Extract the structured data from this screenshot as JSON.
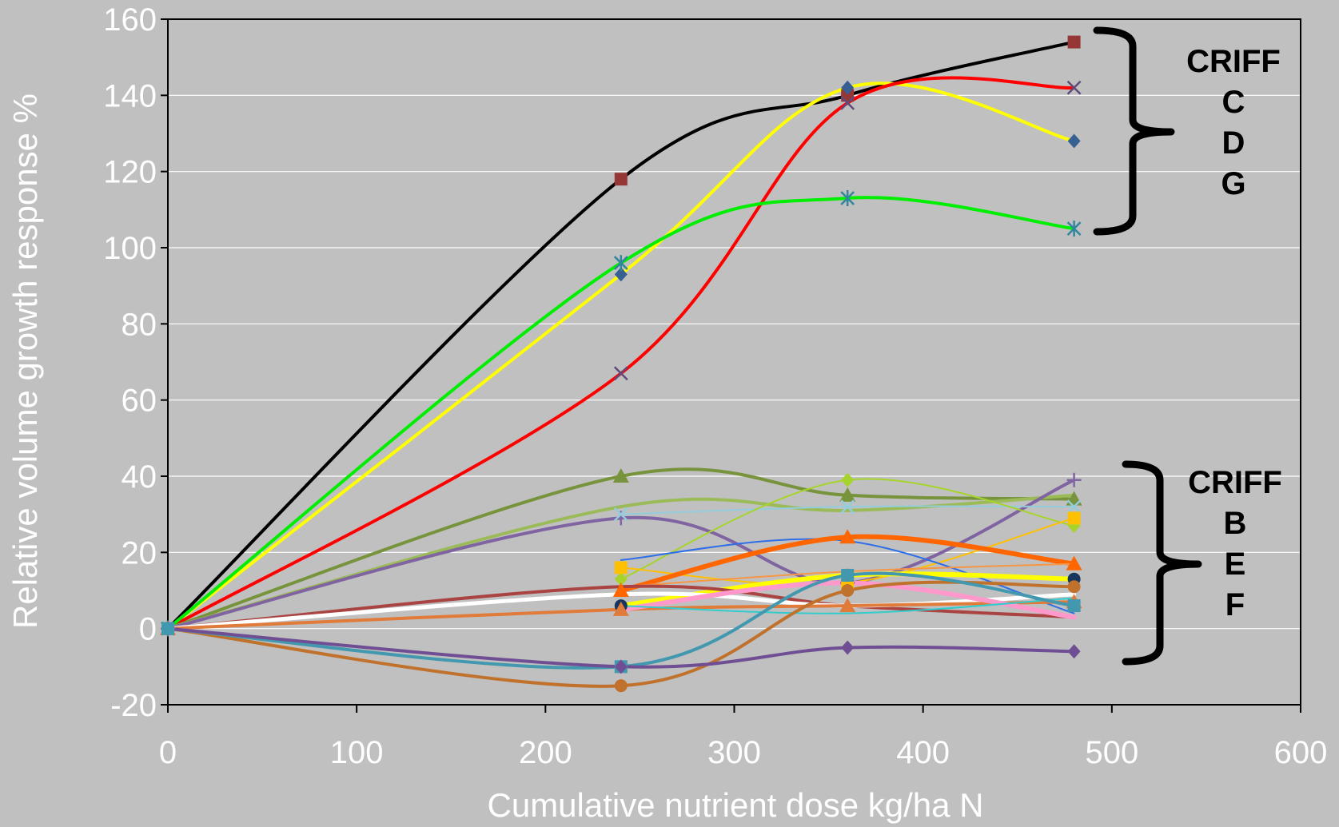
{
  "chart_data": {
    "type": "line",
    "title": "",
    "xlabel": "Cumulative nutrient dose   kg/ha N",
    "ylabel": "Relative volume growth response   %",
    "xlim": [
      0,
      600
    ],
    "ylim": [
      -20,
      160
    ],
    "xticks": [
      0,
      100,
      200,
      300,
      400,
      500,
      600
    ],
    "yticks": [
      -20,
      0,
      20,
      40,
      60,
      80,
      100,
      120,
      140,
      160
    ],
    "grid": "horizontal",
    "legend": "none",
    "groups": [
      {
        "lines": [
          "CRIFF",
          "C",
          "D",
          "G"
        ],
        "y_range": [
          105,
          154
        ]
      },
      {
        "lines": [
          "CRIFF",
          "B",
          "E",
          "F"
        ],
        "y_range": [
          -6,
          39
        ]
      }
    ],
    "series": [
      {
        "color": "#000000",
        "width": 4,
        "marker": "square",
        "marker_color": "#953735",
        "x": [
          0,
          240,
          360,
          480
        ],
        "y": [
          0,
          118,
          140,
          154
        ]
      },
      {
        "color": "#ffff00",
        "width": 4,
        "marker": "diamond",
        "marker_color": "#376092",
        "x": [
          0,
          240,
          360,
          480
        ],
        "y": [
          0,
          93,
          142,
          128
        ]
      },
      {
        "color": "#ff0000",
        "width": 4,
        "marker": "x",
        "marker_color": "#604a7b",
        "x": [
          0,
          240,
          360,
          480
        ],
        "y": [
          0,
          67,
          138,
          142
        ]
      },
      {
        "color": "#00ee00",
        "width": 4,
        "marker": "star",
        "marker_color": "#31859c",
        "x": [
          0,
          240,
          360,
          480
        ],
        "y": [
          0,
          96,
          113,
          105
        ]
      },
      {
        "color": "#77933c",
        "width": 4,
        "marker": "triangle",
        "marker_color": "#77933c",
        "x": [
          0,
          240,
          360,
          480
        ],
        "y": [
          0,
          40,
          35,
          34
        ]
      },
      {
        "color": "#9bbb59",
        "width": 4,
        "marker": "none",
        "marker_color": "#9bbb59",
        "x": [
          0,
          240,
          360,
          480
        ],
        "y": [
          0,
          32,
          31,
          35
        ]
      },
      {
        "color": "#8064a2",
        "width": 4,
        "marker": "plus",
        "marker_color": "#8064a2",
        "x": [
          0,
          240,
          360,
          480
        ],
        "y": [
          0,
          29,
          12,
          39
        ]
      },
      {
        "color": "#93cddd",
        "width": 2,
        "marker": "x",
        "marker_color": "#93cddd",
        "x": [
          240,
          360,
          480
        ],
        "y": [
          30,
          32,
          32
        ]
      },
      {
        "color": "#a6d42c",
        "width": 2,
        "marker": "diamond",
        "marker_color": "#a6d42c",
        "x": [
          240,
          360,
          480
        ],
        "y": [
          13,
          39,
          27
        ]
      },
      {
        "color": "#ffc000",
        "width": 2,
        "marker": "square",
        "marker_color": "#ffc000",
        "x": [
          240,
          360,
          480
        ],
        "y": [
          16,
          12,
          29
        ]
      },
      {
        "color": "#2e6fe8",
        "width": 2,
        "marker": "none",
        "marker_color": "#2e6fe8",
        "x": [
          240,
          360,
          480
        ],
        "y": [
          18,
          23,
          4
        ]
      },
      {
        "color": "#ff6600",
        "width": 6,
        "marker": "triangle",
        "marker_color": "#ff6600",
        "x": [
          240,
          360,
          480
        ],
        "y": [
          10,
          24,
          17
        ]
      },
      {
        "color": "#f79646",
        "width": 2,
        "marker": "none",
        "marker_color": "#f79646",
        "x": [
          240,
          360,
          480
        ],
        "y": [
          11,
          15,
          17
        ]
      },
      {
        "color": "#ffff00",
        "width": 6,
        "marker": "circle",
        "marker_color": "#17375e",
        "x": [
          240,
          360,
          480
        ],
        "y": [
          6,
          14,
          13
        ]
      },
      {
        "color": "#a94442",
        "width": 4,
        "marker": "none",
        "marker_color": "#a94442",
        "x": [
          0,
          240,
          360,
          480
        ],
        "y": [
          0,
          11,
          6,
          3
        ]
      },
      {
        "color": "#ffffff",
        "width": 5,
        "marker": "none",
        "marker_color": "#ffffff",
        "x": [
          0,
          240,
          360,
          480
        ],
        "y": [
          0,
          9,
          6,
          9
        ]
      },
      {
        "color": "#e07b39",
        "width": 4,
        "marker": "triangle",
        "marker_color": "#e07b39",
        "x": [
          0,
          240,
          360,
          480
        ],
        "y": [
          0,
          5,
          6,
          7
        ]
      },
      {
        "color": "#ff99cc",
        "width": 6,
        "marker": "none",
        "marker_color": "#ff99cc",
        "x": [
          240,
          360,
          480
        ],
        "y": [
          5,
          12,
          3
        ]
      },
      {
        "color": "#33cccc",
        "width": 2,
        "marker": "none",
        "marker_color": "#33cccc",
        "x": [
          240,
          360,
          480
        ],
        "y": [
          6,
          4,
          8
        ]
      },
      {
        "color": "#c0722d",
        "width": 4,
        "marker": "circle",
        "marker_color": "#c0722d",
        "x": [
          0,
          240,
          360,
          480
        ],
        "y": [
          0,
          -15,
          10,
          11
        ]
      },
      {
        "color": "#4198af",
        "width": 4,
        "marker": "square",
        "marker_color": "#4198af",
        "x": [
          0,
          240,
          360,
          480
        ],
        "y": [
          0,
          -10,
          14,
          6
        ]
      },
      {
        "color": "#6f4e94",
        "width": 4,
        "marker": "diamond",
        "marker_color": "#6f4e94",
        "x": [
          0,
          240,
          360,
          480
        ],
        "y": [
          0,
          -10,
          -5,
          -6
        ]
      }
    ]
  }
}
